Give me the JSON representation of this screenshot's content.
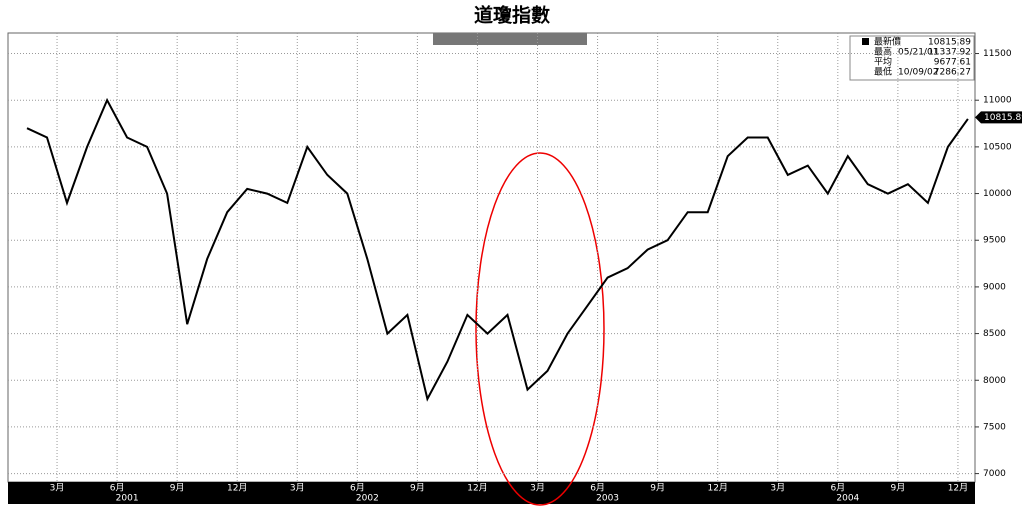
{
  "chart_data": {
    "type": "line",
    "title": "道瓊指數",
    "x": [
      "2001-01",
      "2001-02",
      "2001-03",
      "2001-04",
      "2001-05",
      "2001-06",
      "2001-07",
      "2001-08",
      "2001-09",
      "2001-10",
      "2001-11",
      "2001-12",
      "2002-01",
      "2002-02",
      "2002-03",
      "2002-04",
      "2002-05",
      "2002-06",
      "2002-07",
      "2002-08",
      "2002-09",
      "2002-10",
      "2002-11",
      "2002-12",
      "2003-01",
      "2003-02",
      "2003-03",
      "2003-04",
      "2003-05",
      "2003-06",
      "2003-07",
      "2003-08",
      "2003-09",
      "2003-10",
      "2003-11",
      "2003-12",
      "2004-01",
      "2004-02",
      "2004-03",
      "2004-04",
      "2004-05",
      "2004-06",
      "2004-07",
      "2004-08",
      "2004-09",
      "2004-10",
      "2004-11",
      "2004-12"
    ],
    "series": [
      {
        "name": "最新價",
        "color": "#000000",
        "values": [
          10700,
          10600,
          9900,
          10500,
          11000,
          10600,
          10500,
          10000,
          8600,
          9300,
          9800,
          10050,
          10000,
          9900,
          10500,
          10200,
          10000,
          9300,
          8500,
          8700,
          7800,
          8200,
          8700,
          8500,
          8700,
          7900,
          8100,
          8500,
          8800,
          9100,
          9200,
          9400,
          9500,
          9800,
          9800,
          10400,
          10600,
          10600,
          10200,
          10300,
          10000,
          10400,
          10100,
          10000,
          10100,
          9900,
          10500,
          10800
        ]
      }
    ],
    "ylim": [
      6910,
      11720
    ],
    "yticks": [
      7000,
      7500,
      8000,
      8500,
      9000,
      9500,
      10000,
      10500,
      11000,
      11500
    ],
    "xticks": [
      {
        "value": "2001-03",
        "label": "3月"
      },
      {
        "value": "2001-06",
        "label": "6月"
      },
      {
        "value": "2001-09",
        "label": "9月"
      },
      {
        "value": "2001-12",
        "label": "12月"
      },
      {
        "value": "2002-03",
        "label": "3月"
      },
      {
        "value": "2002-06",
        "label": "6月"
      },
      {
        "value": "2002-09",
        "label": "9月"
      },
      {
        "value": "2002-12",
        "label": "12月"
      },
      {
        "value": "2003-03",
        "label": "3月"
      },
      {
        "value": "2003-06",
        "label": "6月"
      },
      {
        "value": "2003-09",
        "label": "9月"
      },
      {
        "value": "2003-12",
        "label": "12月"
      },
      {
        "value": "2004-03",
        "label": "3月"
      },
      {
        "value": "2004-06",
        "label": "6月"
      },
      {
        "value": "2004-09",
        "label": "9月"
      },
      {
        "value": "2004-12",
        "label": "12月"
      }
    ],
    "year_labels": [
      "2001",
      "2002",
      "2003",
      "2004"
    ],
    "grid": true,
    "stats": [
      {
        "label": "最新價",
        "value": 10815.89
      },
      {
        "label": "最高",
        "date": "05/21/01",
        "value": 11337.92
      },
      {
        "label": "平均",
        "value": 9677.61
      },
      {
        "label": "最低",
        "date": "10/09/02",
        "value": 7286.27
      }
    ]
  }
}
